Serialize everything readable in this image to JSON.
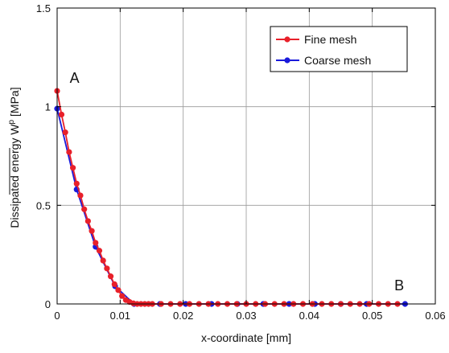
{
  "chart_data": {
    "type": "line",
    "xlabel": "x-coordinate [mm]",
    "ylabel": "Dissipated energy W",
    "ylabel_sup": "p",
    "ylabel_unit": " [MPa]",
    "xlim": [
      0,
      0.06
    ],
    "ylim": [
      0,
      1.5
    ],
    "xticks": [
      0,
      0.01,
      0.02,
      0.03,
      0.04,
      0.05,
      0.06
    ],
    "xtick_labels": [
      "0",
      "0.01",
      "0.02",
      "0.03",
      "0.04",
      "0.05",
      "0.06"
    ],
    "yticks": [
      0,
      0.5,
      1,
      1.5
    ],
    "ytick_labels": [
      "0",
      "0.5",
      "1",
      "1.5"
    ],
    "grid": true,
    "legend_position": "top-right",
    "annotations": [
      {
        "text": "A",
        "x": 0.002,
        "y": 1.12
      },
      {
        "text": "B",
        "x": 0.0535,
        "y": 0.07
      }
    ],
    "series": [
      {
        "name": "Fine mesh",
        "color": "#e8202a",
        "marker": "circle",
        "points": [
          [
            0.0,
            1.08
          ],
          [
            0.0007,
            0.96
          ],
          [
            0.0013,
            0.87
          ],
          [
            0.0019,
            0.77
          ],
          [
            0.0025,
            0.69
          ],
          [
            0.0031,
            0.61
          ],
          [
            0.0037,
            0.55
          ],
          [
            0.0043,
            0.48
          ],
          [
            0.0049,
            0.42
          ],
          [
            0.0055,
            0.37
          ],
          [
            0.0061,
            0.31
          ],
          [
            0.0067,
            0.27
          ],
          [
            0.0073,
            0.22
          ],
          [
            0.0079,
            0.18
          ],
          [
            0.0085,
            0.14
          ],
          [
            0.0091,
            0.1
          ],
          [
            0.0097,
            0.07
          ],
          [
            0.0103,
            0.04
          ],
          [
            0.0109,
            0.02
          ],
          [
            0.0115,
            0.01
          ],
          [
            0.0121,
            0.003
          ],
          [
            0.0127,
            0.0
          ],
          [
            0.0133,
            0.0
          ],
          [
            0.0139,
            0.0
          ],
          [
            0.0145,
            0.0
          ],
          [
            0.0151,
            0.0
          ],
          [
            0.0165,
            0.0
          ],
          [
            0.018,
            0.0
          ],
          [
            0.0195,
            0.0
          ],
          [
            0.021,
            0.0
          ],
          [
            0.0225,
            0.0
          ],
          [
            0.024,
            0.0
          ],
          [
            0.0255,
            0.0
          ],
          [
            0.027,
            0.0
          ],
          [
            0.0285,
            0.0
          ],
          [
            0.03,
            0.0
          ],
          [
            0.0315,
            0.0
          ],
          [
            0.033,
            0.0
          ],
          [
            0.0345,
            0.0
          ],
          [
            0.036,
            0.0
          ],
          [
            0.0375,
            0.0
          ],
          [
            0.039,
            0.0
          ],
          [
            0.0405,
            0.0
          ],
          [
            0.042,
            0.0
          ],
          [
            0.0435,
            0.0
          ],
          [
            0.045,
            0.0
          ],
          [
            0.0465,
            0.0
          ],
          [
            0.048,
            0.0
          ],
          [
            0.0495,
            0.0
          ],
          [
            0.051,
            0.0
          ],
          [
            0.0525,
            0.0
          ],
          [
            0.054,
            0.0
          ]
        ]
      },
      {
        "name": "Coarse mesh",
        "color": "#1a1adb",
        "marker": "circle",
        "points": [
          [
            0.0,
            0.99
          ],
          [
            0.0031,
            0.58
          ],
          [
            0.0061,
            0.29
          ],
          [
            0.0092,
            0.09
          ],
          [
            0.0122,
            0.0
          ],
          [
            0.0163,
            0.0
          ],
          [
            0.0204,
            0.0
          ],
          [
            0.0245,
            0.0
          ],
          [
            0.0286,
            0.0
          ],
          [
            0.0327,
            0.0
          ],
          [
            0.0368,
            0.0
          ],
          [
            0.0409,
            0.0
          ],
          [
            0.045,
            0.0
          ],
          [
            0.0491,
            0.0
          ],
          [
            0.0552,
            0.0
          ]
        ]
      }
    ]
  }
}
